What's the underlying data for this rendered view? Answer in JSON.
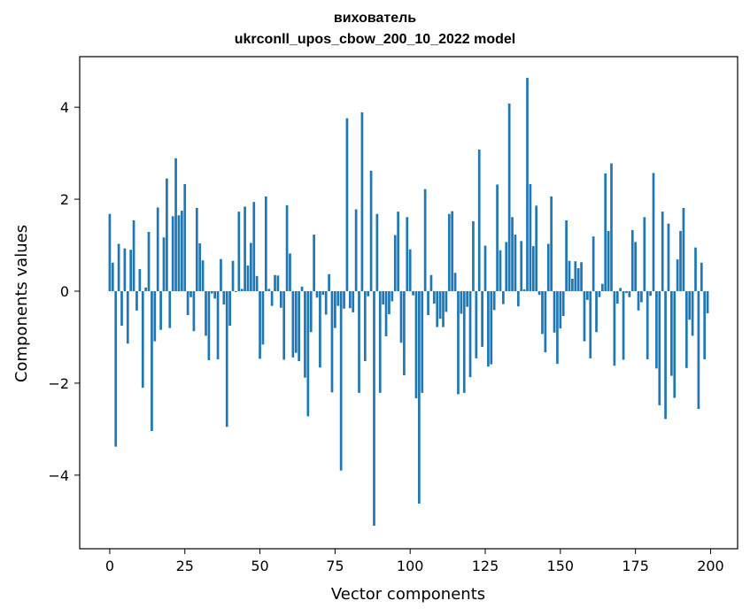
{
  "chart_data": {
    "type": "bar",
    "title": [
      "вихователь",
      "ukrconll_upos_cbow_200_10_2022 model"
    ],
    "xlabel": "Vector components",
    "ylabel": "Components values",
    "xlim": [
      -10,
      209
    ],
    "ylim": [
      -5.6,
      5.1
    ],
    "xticks": [
      0,
      25,
      50,
      75,
      100,
      125,
      150,
      175,
      200
    ],
    "yticks": [
      -4,
      -2,
      0,
      2,
      4
    ],
    "ytick_labels": [
      "−4",
      "−2",
      "0",
      "2",
      "4"
    ],
    "grid": false,
    "legend": "none",
    "bar_color": "#1f77b4",
    "x": "components 0–199",
    "values": [
      1.68,
      0.62,
      -3.38,
      1.03,
      -0.75,
      0.93,
      -1.14,
      0.9,
      1.54,
      -0.42,
      0.48,
      -2.1,
      0.08,
      1.29,
      -3.04,
      -1.09,
      1.82,
      -0.84,
      1.17,
      2.45,
      -0.8,
      1.63,
      2.89,
      1.65,
      1.75,
      2.33,
      -0.52,
      -0.13,
      -0.87,
      1.81,
      1.04,
      0.67,
      -0.97,
      -1.5,
      -0.05,
      -0.16,
      -1.48,
      0.7,
      -0.29,
      -2.95,
      -0.75,
      0.66,
      -0.02,
      1.73,
      0.05,
      1.84,
      0.56,
      1.05,
      1.94,
      0.33,
      -1.47,
      -1.16,
      2.06,
      0.05,
      -0.32,
      0.35,
      0.34,
      -0.36,
      -1.49,
      1.87,
      0.82,
      -1.44,
      -1.34,
      -1.52,
      0.1,
      -1.88,
      -2.72,
      -0.89,
      1.23,
      -0.14,
      -1.66,
      -0.08,
      -0.51,
      0.37,
      -2.2,
      -0.8,
      -0.32,
      -3.9,
      -0.38,
      3.76,
      -0.37,
      -0.46,
      1.78,
      -2.21,
      3.89,
      -1.52,
      -0.11,
      2.62,
      -5.1,
      1.68,
      -2.21,
      -0.29,
      -0.98,
      -0.5,
      -0.22,
      1.22,
      1.73,
      -1.12,
      -1.83,
      1.61,
      0.91,
      -0.09,
      -2.33,
      -4.62,
      -2.21,
      2.22,
      -0.52,
      0.35,
      -0.27,
      -0.78,
      -0.6,
      -0.78,
      -0.45,
      1.68,
      1.74,
      0.4,
      -2.24,
      -0.49,
      -2.21,
      -0.34,
      -1.87,
      1.52,
      -1.46,
      3.08,
      -1.21,
      0.99,
      -1.64,
      -1.59,
      -0.41,
      2.32,
      0.89,
      -0.28,
      1.07,
      4.08,
      1.61,
      1.23,
      -0.33,
      1.09,
      0.04,
      4.64,
      2.33,
      0.98,
      1.86,
      -0.08,
      -0.93,
      -1.33,
      1.03,
      2.06,
      -0.9,
      -1.58,
      -0.81,
      -0.54,
      1.54,
      0.66,
      0.27,
      0.65,
      0.5,
      0.63,
      -1.09,
      -0.19,
      -1.46,
      1.19,
      -0.89,
      -0.13,
      0.16,
      2.56,
      1.31,
      2.78,
      -1.62,
      -0.27,
      0.07,
      -1.49,
      -0.04,
      -0.13,
      1.33,
      1.07,
      -0.42,
      -0.24,
      1.61,
      -1.48,
      -0.1,
      2.57,
      -1.68,
      -2.48,
      1.73,
      -2.78,
      1.47,
      -1.84,
      -2.32,
      0.69,
      1.31,
      1.81,
      -1.67,
      -0.62,
      -0.97,
      0.95,
      -2.56,
      0.62,
      -1.48,
      -0.48
    ]
  }
}
